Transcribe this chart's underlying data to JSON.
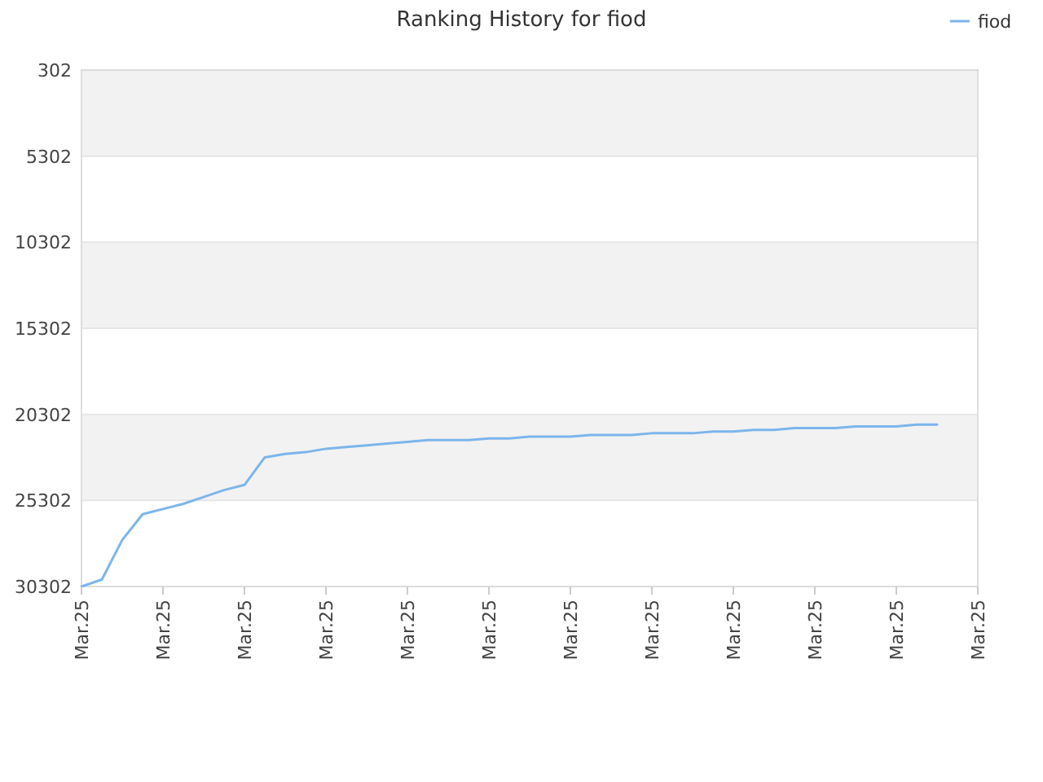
{
  "chart_data": {
    "type": "line",
    "title": "Ranking History for fiod",
    "categories": [
      "Mar.25",
      null,
      null,
      null,
      "Mar.25",
      null,
      null,
      null,
      "Mar.25",
      null,
      null,
      null,
      "Mar.25",
      null,
      null,
      null,
      "Mar.25",
      null,
      null,
      null,
      "Mar.25",
      null,
      null,
      null,
      "Mar.25",
      null,
      null,
      null,
      "Mar.25",
      null,
      null,
      null,
      "Mar.25",
      null,
      null,
      null,
      "Mar.25",
      null,
      null,
      null,
      "Mar.25",
      null,
      null,
      null,
      "Mar.25"
    ],
    "series": [
      {
        "name": "fiod",
        "color": "#7cb5ec",
        "values": [
          30300,
          29900,
          27600,
          26100,
          25800,
          25500,
          25100,
          24700,
          24400,
          22800,
          22600,
          22500,
          22300,
          22200,
          22100,
          22000,
          21900,
          21800,
          21800,
          21800,
          21700,
          21700,
          21600,
          21600,
          21600,
          21500,
          21500,
          21500,
          21400,
          21400,
          21400,
          21300,
          21300,
          21200,
          21200,
          21100,
          21100,
          21100,
          21000,
          21000,
          21000,
          20900,
          20900,
          null,
          null
        ]
      }
    ],
    "ylim": [
      30302,
      302
    ],
    "yticks": [
      302,
      5302,
      10302,
      15302,
      20302,
      25302,
      30302
    ],
    "bands": [
      {
        "axis": "y",
        "from": 302,
        "to": 5302,
        "color": "#f2f2f2"
      },
      {
        "axis": "y",
        "from": 10302,
        "to": 15302,
        "color": "#f2f2f2"
      },
      {
        "axis": "y",
        "from": 20302,
        "to": 25302,
        "color": "#f2f2f2"
      }
    ],
    "grid": "y",
    "legend": "top right",
    "marker": "none",
    "line_style": "solid"
  }
}
